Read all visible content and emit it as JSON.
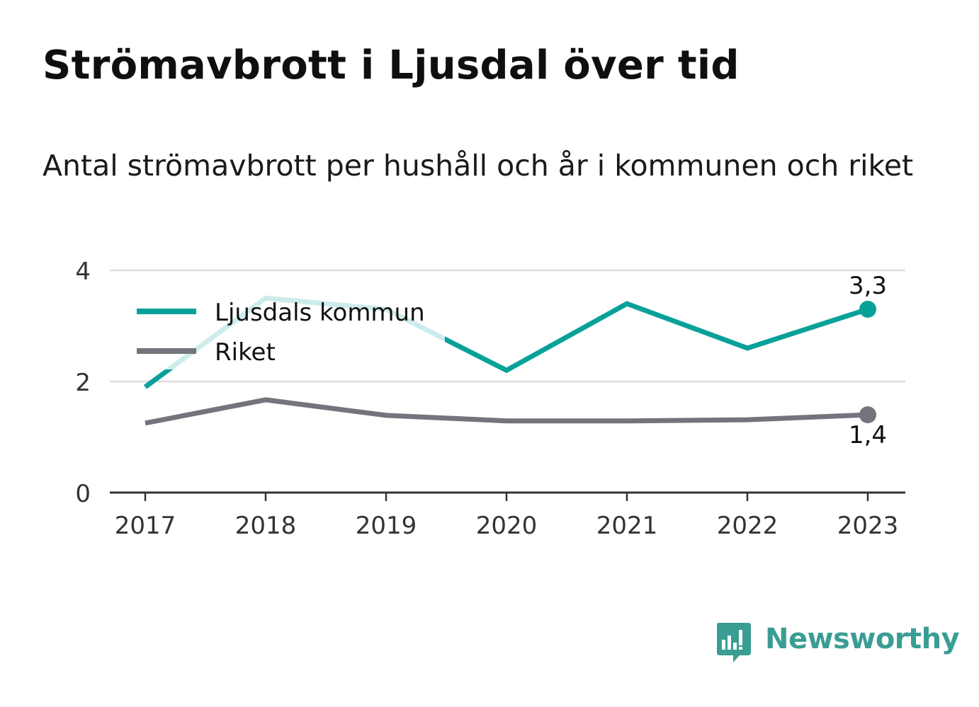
{
  "chart_data": {
    "type": "line",
    "title": "Strömavbrott i Ljusdal över tid",
    "subtitle": "Antal strömavbrott per hushåll och år i kommunen och riket",
    "x": [
      "2017",
      "2018",
      "2019",
      "2020",
      "2021",
      "2022",
      "2023"
    ],
    "ylim": [
      0,
      4
    ],
    "yticks": [
      "0",
      "2",
      "4"
    ],
    "grid": true,
    "legend": "top-left",
    "series": [
      {
        "name": "Ljusdals kommun",
        "color": "#08a19a",
        "values": [
          1.9,
          3.5,
          3.3,
          2.2,
          3.4,
          2.6,
          3.3
        ],
        "end_label": "3,3"
      },
      {
        "name": "Riket",
        "color": "#74747c",
        "values": [
          1.25,
          1.67,
          1.39,
          1.29,
          1.29,
          1.31,
          1.4
        ],
        "end_label": "1,4"
      }
    ]
  },
  "branding": {
    "logo_text": "Newsworthy",
    "logo_icon": "newsworthy-bar-chart-icon",
    "color": "#3a9d93"
  }
}
